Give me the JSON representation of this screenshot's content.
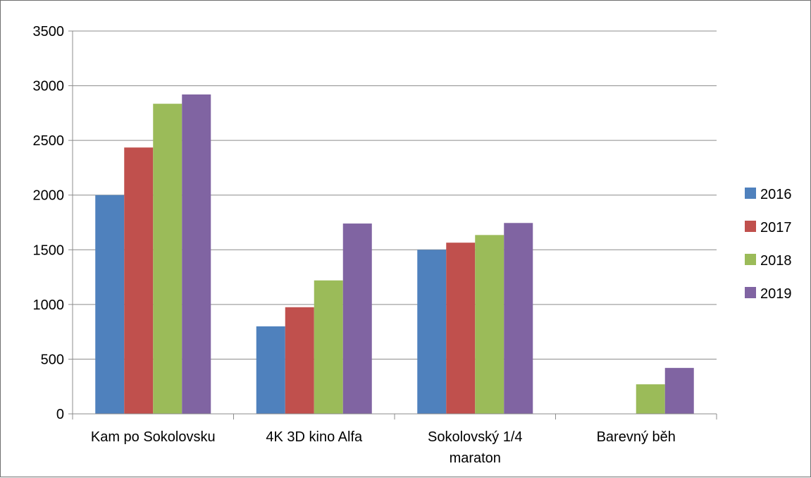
{
  "chart_data": {
    "type": "bar",
    "title": "",
    "xlabel": "",
    "ylabel": "",
    "categories": [
      [
        "Kam po Sokolovsku"
      ],
      [
        "4K 3D kino Alfa"
      ],
      [
        "Sokolovský 1/4",
        "maraton"
      ],
      [
        "Barevný běh"
      ]
    ],
    "series": [
      {
        "name": "2016",
        "color": "#4F81BD",
        "values": [
          2000,
          800,
          1500,
          0
        ]
      },
      {
        "name": "2017",
        "color": "#C0504D",
        "values": [
          2435,
          975,
          1565,
          0
        ]
      },
      {
        "name": "2018",
        "color": "#9BBB59",
        "values": [
          2835,
          1220,
          1635,
          270
        ]
      },
      {
        "name": "2019",
        "color": "#8064A2",
        "values": [
          2920,
          1740,
          1745,
          420
        ]
      }
    ],
    "ylim": [
      0,
      3500
    ],
    "yticks": [
      0,
      500,
      1000,
      1500,
      2000,
      2500,
      3000,
      3500
    ],
    "grid": true,
    "legend_position": "right"
  }
}
